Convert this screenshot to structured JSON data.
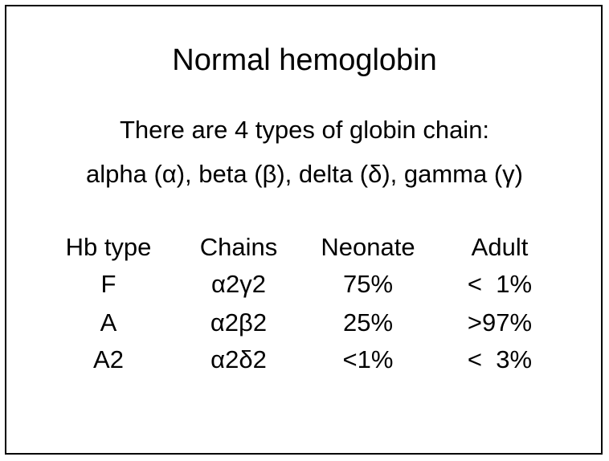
{
  "title": "Normal hemoglobin",
  "intro": [
    "There are 4 types of globin chain:",
    "alpha (α), beta (β), delta (δ), gamma (γ)"
  ],
  "table": {
    "header": [
      "Hb type",
      "Chains",
      "Neonate",
      "Adult"
    ],
    "rows": [
      [
        "F",
        "α2γ2",
        "75%",
        "<  1%"
      ],
      [
        "A",
        "α2β2",
        "25%",
        ">97%"
      ],
      [
        "A2",
        "α2δ2",
        "<1%",
        "<  3%"
      ]
    ]
  }
}
